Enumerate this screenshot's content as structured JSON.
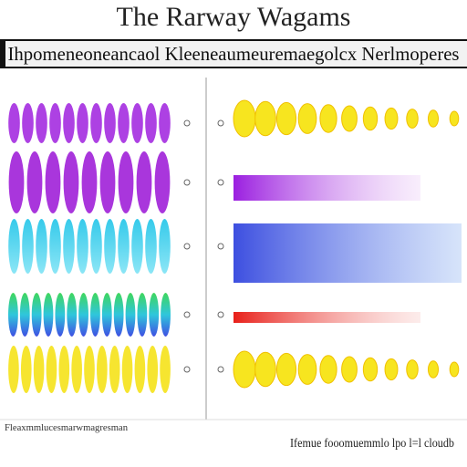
{
  "header": {
    "title": "The Rarway Wagams",
    "subtitle": "Ihpomeneoneancaol Kleeneaumeuremaegolcx Nerlmoperes"
  },
  "footer": {
    "left": "Fleaxmmlucesmarwmagresman",
    "right": "Ifemue fooomuemmlo lpo l=l cloudb"
  }
}
